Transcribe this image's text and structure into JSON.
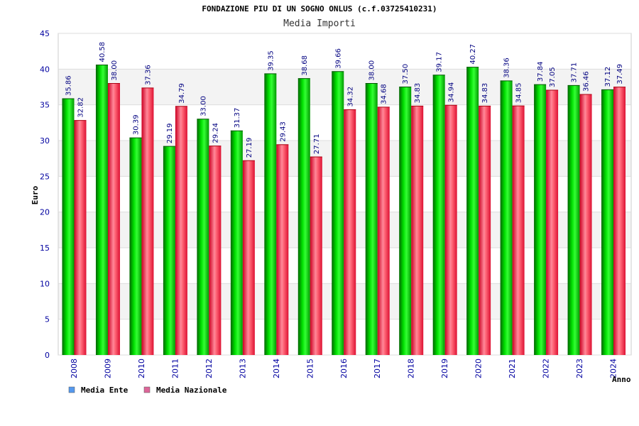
{
  "chart_data": {
    "type": "bar",
    "title": "FONDAZIONE PIU DI UN SOGNO ONLUS (c.f.03725410231)",
    "subtitle": "Media Importi",
    "xlabel": "Anno",
    "ylabel": "Euro",
    "ylim": [
      0,
      45
    ],
    "yticks": [
      0,
      5,
      10,
      15,
      20,
      25,
      30,
      35,
      40,
      45
    ],
    "grid": true,
    "legend_position": "bottom-left",
    "categories": [
      "2008",
      "2009",
      "2010",
      "2011",
      "2012",
      "2013",
      "2014",
      "2015",
      "2016",
      "2017",
      "2018",
      "2019",
      "2020",
      "2021",
      "2022",
      "2023",
      "2024"
    ],
    "series": [
      {
        "name": "Media Ente",
        "color": "#00cc00",
        "legend_color": "#5599ee",
        "values": [
          35.86,
          40.58,
          30.39,
          29.19,
          33.0,
          31.37,
          39.35,
          38.68,
          39.66,
          38.0,
          37.5,
          39.17,
          40.27,
          38.36,
          37.84,
          37.71,
          37.12
        ]
      },
      {
        "name": "Media Nazionale",
        "color": "#ee2244",
        "legend_color": "#dd6699",
        "values": [
          32.82,
          38.0,
          37.36,
          34.79,
          29.24,
          27.19,
          29.43,
          27.71,
          34.32,
          34.68,
          34.83,
          34.94,
          34.83,
          34.85,
          37.05,
          36.46,
          37.49
        ]
      }
    ]
  }
}
